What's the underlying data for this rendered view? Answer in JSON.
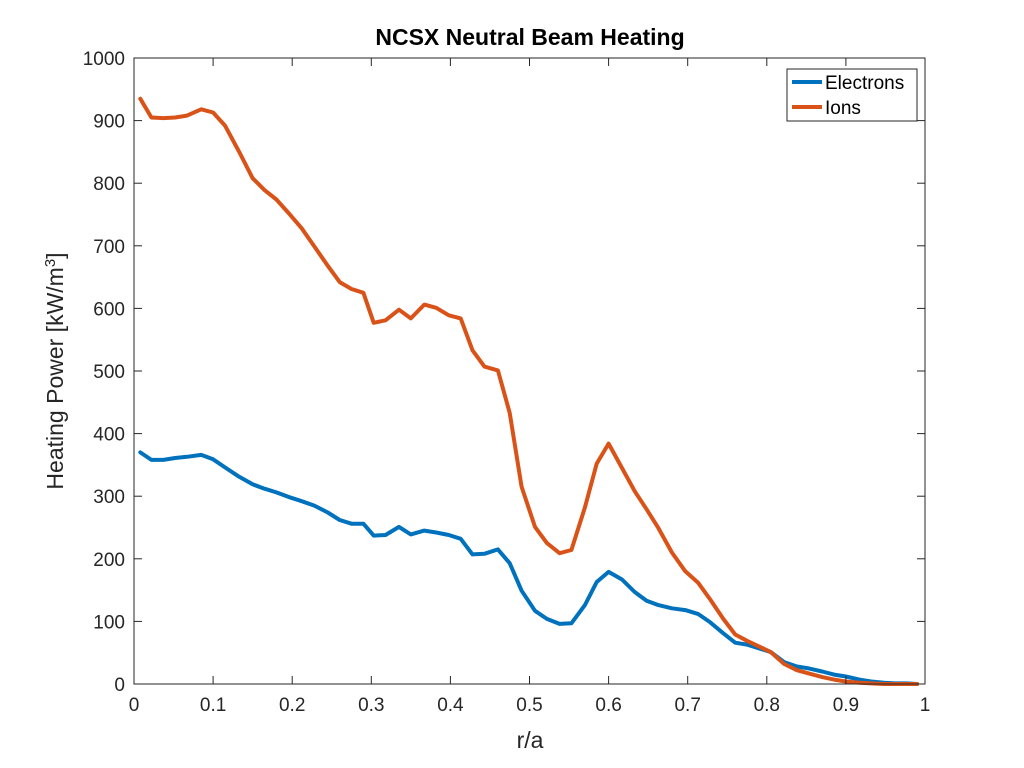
{
  "chart_data": {
    "type": "line",
    "title": "NCSX Neutral Beam Heating",
    "xlabel": "r/a",
    "ylabel_main": "Heating Power [kW/m",
    "ylabel_sup": "3",
    "ylabel_tail": "]",
    "xlim": [
      0,
      1
    ],
    "ylim": [
      0,
      1000
    ],
    "xticks": [
      0,
      0.1,
      0.2,
      0.3,
      0.4,
      0.5,
      0.6,
      0.7,
      0.8,
      0.9,
      1
    ],
    "xtick_labels": [
      "0",
      "0.1",
      "0.2",
      "0.3",
      "0.4",
      "0.5",
      "0.6",
      "0.7",
      "0.8",
      "0.9",
      "1"
    ],
    "yticks": [
      0,
      100,
      200,
      300,
      400,
      500,
      600,
      700,
      800,
      900,
      1000
    ],
    "ytick_labels": [
      "0",
      "100",
      "200",
      "300",
      "400",
      "500",
      "600",
      "700",
      "800",
      "900",
      "1000"
    ],
    "grid": false,
    "legend_position": "top-right",
    "series": [
      {
        "name": "Electrons",
        "color": "#0072BD",
        "x": [
          0.008,
          0.022,
          0.037,
          0.052,
          0.067,
          0.085,
          0.1,
          0.115,
          0.133,
          0.15,
          0.165,
          0.18,
          0.195,
          0.212,
          0.228,
          0.245,
          0.26,
          0.275,
          0.29,
          0.303,
          0.318,
          0.335,
          0.35,
          0.367,
          0.382,
          0.398,
          0.413,
          0.428,
          0.443,
          0.46,
          0.475,
          0.49,
          0.507,
          0.522,
          0.538,
          0.553,
          0.57,
          0.585,
          0.6,
          0.617,
          0.633,
          0.648,
          0.663,
          0.68,
          0.697,
          0.713,
          0.728,
          0.745,
          0.76,
          0.775,
          0.79,
          0.805,
          0.822,
          0.838,
          0.853,
          0.87,
          0.885,
          0.9,
          0.917,
          0.932,
          0.948,
          0.962,
          0.977,
          0.99
        ],
        "y": [
          370,
          358,
          358,
          361,
          363,
          366,
          359,
          346,
          331,
          319,
          312,
          306,
          299,
          292,
          285,
          274,
          262,
          256,
          256,
          237,
          238,
          251,
          239,
          245,
          242,
          238,
          232,
          207,
          208,
          215,
          193,
          149,
          117,
          104,
          96,
          97,
          126,
          163,
          179,
          167,
          147,
          133,
          126,
          121,
          118,
          112,
          99,
          81,
          66,
          63,
          57,
          51,
          35,
          28,
          25,
          20,
          15,
          12,
          7,
          4,
          2,
          1,
          1,
          0
        ]
      },
      {
        "name": "Ions",
        "color": "#D95319",
        "x": [
          0.008,
          0.022,
          0.037,
          0.052,
          0.067,
          0.085,
          0.1,
          0.115,
          0.133,
          0.15,
          0.165,
          0.18,
          0.195,
          0.212,
          0.228,
          0.245,
          0.26,
          0.275,
          0.29,
          0.303,
          0.318,
          0.335,
          0.35,
          0.367,
          0.382,
          0.398,
          0.413,
          0.428,
          0.443,
          0.46,
          0.475,
          0.49,
          0.507,
          0.522,
          0.538,
          0.553,
          0.57,
          0.585,
          0.6,
          0.617,
          0.633,
          0.648,
          0.663,
          0.68,
          0.697,
          0.713,
          0.728,
          0.745,
          0.76,
          0.775,
          0.79,
          0.805,
          0.822,
          0.838,
          0.853,
          0.87,
          0.885,
          0.9,
          0.917,
          0.932,
          0.948,
          0.962,
          0.977,
          0.99
        ],
        "y": [
          935,
          905,
          904,
          905,
          908,
          918,
          913,
          892,
          850,
          808,
          789,
          774,
          753,
          728,
          699,
          668,
          642,
          631,
          625,
          577,
          581,
          598,
          584,
          606,
          601,
          589,
          584,
          533,
          507,
          501,
          433,
          315,
          251,
          225,
          209,
          214,
          282,
          352,
          384,
          345,
          308,
          279,
          249,
          210,
          180,
          162,
          136,
          104,
          79,
          69,
          60,
          51,
          32,
          22,
          17,
          11,
          7,
          4,
          2,
          1,
          0,
          0,
          0,
          0
        ]
      }
    ]
  }
}
